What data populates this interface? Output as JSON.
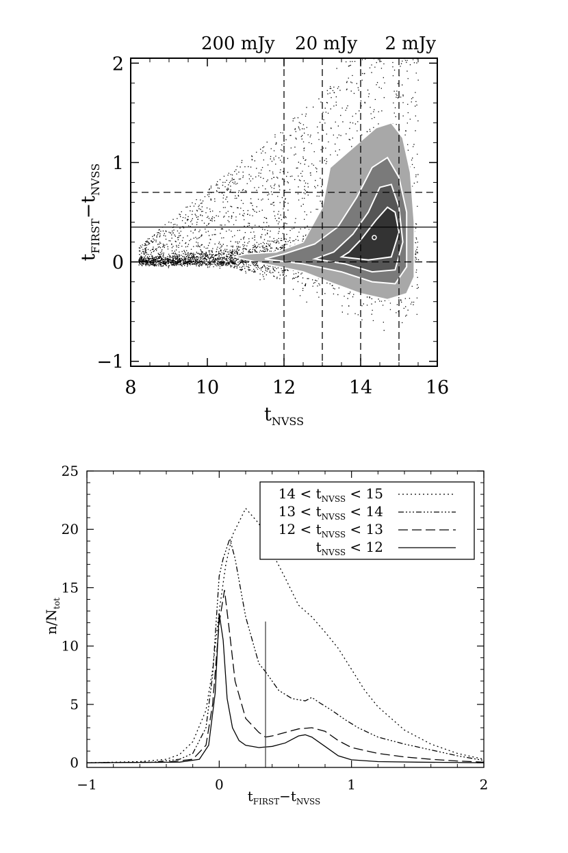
{
  "chart_data": [
    {
      "type": "scatter",
      "xlabel": "t",
      "xlabel_sub": "NVSS",
      "ylabel": "t",
      "ylabel_sub": "FIRST",
      "ylabel_mid": "−t",
      "ylabel_sub2": "NVSS",
      "xlim": [
        8,
        16
      ],
      "ylim": [
        -1.05,
        2.05
      ],
      "x_ticks": [
        "8",
        "10",
        "12",
        "14",
        "16"
      ],
      "y_ticks": [
        "−1",
        "0",
        "1",
        "2"
      ],
      "top_labels": [
        "200 mJy",
        "20 mJy",
        "2 mJy"
      ],
      "top_label_positions": [
        10.8,
        13.1,
        15.3
      ],
      "vertical_dashed_lines": [
        12,
        13,
        14,
        15
      ],
      "horizontal_dashed_lines": [
        0,
        0.7
      ],
      "horizontal_solid_line": 0.35,
      "grid": false,
      "contours": [
        {
          "level": 1,
          "color": "#a8a8a8",
          "points": [
            [
              10.7,
              0.05
            ],
            [
              11.5,
              -0.02
            ],
            [
              12.5,
              -0.1
            ],
            [
              13.3,
              -0.22
            ],
            [
              14.0,
              -0.32
            ],
            [
              14.7,
              -0.38
            ],
            [
              15.2,
              -0.32
            ],
            [
              15.4,
              -0.15
            ],
            [
              15.4,
              0.4
            ],
            [
              15.3,
              0.9
            ],
            [
              15.1,
              1.25
            ],
            [
              14.8,
              1.4
            ],
            [
              14.4,
              1.35
            ],
            [
              13.8,
              1.15
            ],
            [
              13.2,
              0.95
            ],
            [
              13.0,
              0.55
            ],
            [
              12.5,
              0.2
            ],
            [
              11.8,
              0.1
            ],
            [
              11.0,
              0.08
            ]
          ]
        },
        {
          "level": 2,
          "color": "#7a7a7a",
          "points": [
            [
              11.5,
              0.03
            ],
            [
              12.5,
              -0.02
            ],
            [
              13.5,
              -0.1
            ],
            [
              14.3,
              -0.2
            ],
            [
              14.9,
              -0.22
            ],
            [
              15.2,
              -0.05
            ],
            [
              15.2,
              0.5
            ],
            [
              15.0,
              0.85
            ],
            [
              14.7,
              1.05
            ],
            [
              14.3,
              0.95
            ],
            [
              13.9,
              0.65
            ],
            [
              13.4,
              0.35
            ],
            [
              12.8,
              0.18
            ],
            [
              12.0,
              0.08
            ]
          ]
        },
        {
          "level": 3,
          "color": "#555555",
          "points": [
            [
              12.8,
              0.03
            ],
            [
              13.6,
              -0.02
            ],
            [
              14.3,
              -0.1
            ],
            [
              14.9,
              -0.08
            ],
            [
              15.1,
              0.2
            ],
            [
              15.0,
              0.55
            ],
            [
              14.8,
              0.78
            ],
            [
              14.5,
              0.75
            ],
            [
              14.2,
              0.5
            ],
            [
              13.8,
              0.28
            ],
            [
              13.3,
              0.1
            ]
          ]
        },
        {
          "level": 4,
          "color": "#333333",
          "points": [
            [
              13.5,
              0.05
            ],
            [
              14.2,
              0.02
            ],
            [
              14.8,
              0.05
            ],
            [
              15.0,
              0.3
            ],
            [
              14.9,
              0.5
            ],
            [
              14.7,
              0.55
            ],
            [
              14.4,
              0.42
            ],
            [
              14.0,
              0.22
            ],
            [
              13.7,
              0.1
            ]
          ]
        }
      ]
    },
    {
      "type": "line",
      "xlabel": "t",
      "xlabel_sub": "FIRST",
      "xlabel_mid": "−t",
      "xlabel_sub2": "NVSS",
      "ylabel": "n/N",
      "ylabel_sub": "tot",
      "xlim": [
        -1,
        2
      ],
      "ylim": [
        -0.4,
        25
      ],
      "x_ticks": [
        "−1",
        "0",
        "1",
        "2"
      ],
      "x_tick_values": [
        -1,
        0,
        1,
        2
      ],
      "y_ticks": [
        "0",
        "5",
        "10",
        "15",
        "20",
        "25"
      ],
      "y_tick_values": [
        0,
        5,
        10,
        15,
        20,
        25
      ],
      "vertical_marker": {
        "x": 0.35,
        "y_top": 12.1
      },
      "legend_position": "top-right",
      "grid": false,
      "series": [
        {
          "name": "14 < t",
          "name_sub": "NVSS",
          "name_tail": " < 15",
          "dash": "2,4",
          "x": [
            -1.0,
            -0.6,
            -0.4,
            -0.3,
            -0.2,
            -0.1,
            -0.05,
            0.0,
            0.05,
            0.1,
            0.2,
            0.3,
            0.4,
            0.5,
            0.6,
            0.7,
            0.8,
            0.9,
            1.0,
            1.1,
            1.2,
            1.4,
            1.6,
            1.8,
            2.0
          ],
          "y": [
            0.0,
            0.1,
            0.3,
            0.7,
            1.8,
            4.5,
            8.0,
            13.0,
            17.0,
            19.5,
            21.8,
            20.5,
            18.0,
            15.8,
            13.5,
            12.5,
            11.2,
            9.8,
            8.0,
            6.2,
            4.8,
            2.8,
            1.6,
            0.8,
            0.3
          ]
        },
        {
          "name": "13 < t",
          "name_sub": "NVSS",
          "name_tail": " < 14",
          "dash": "8,3,2,3,2,3,2,3",
          "x": [
            -1.0,
            -0.5,
            -0.3,
            -0.2,
            -0.1,
            -0.05,
            0.0,
            0.03,
            0.08,
            0.12,
            0.2,
            0.3,
            0.35,
            0.45,
            0.55,
            0.65,
            0.7,
            0.75,
            0.85,
            0.95,
            1.05,
            1.2,
            1.4,
            1.6,
            1.8,
            2.0
          ],
          "y": [
            0.0,
            0.05,
            0.3,
            0.8,
            3.0,
            7.5,
            16.0,
            17.5,
            19.2,
            17.5,
            12.5,
            8.5,
            7.8,
            6.2,
            5.5,
            5.3,
            5.6,
            5.2,
            4.5,
            3.7,
            3.0,
            2.2,
            1.6,
            1.1,
            0.6,
            0.2
          ]
        },
        {
          "name": "12 < t",
          "name_sub": "NVSS",
          "name_tail": " < 13",
          "dash": "14,6",
          "x": [
            -1.0,
            -0.4,
            -0.2,
            -0.1,
            -0.05,
            0.0,
            0.04,
            0.08,
            0.12,
            0.2,
            0.3,
            0.35,
            0.4,
            0.5,
            0.6,
            0.7,
            0.8,
            0.9,
            1.0,
            1.2,
            1.4,
            1.6,
            1.8,
            2.0
          ],
          "y": [
            0.0,
            0.05,
            0.3,
            1.5,
            5.0,
            12.0,
            14.8,
            11.0,
            7.0,
            3.8,
            2.6,
            2.2,
            2.3,
            2.6,
            2.9,
            3.0,
            2.7,
            1.9,
            1.3,
            0.8,
            0.5,
            0.3,
            0.15,
            0.05
          ]
        },
        {
          "name": "t",
          "name_sub": "NVSS",
          "name_tail": " < 12",
          "dash": "",
          "x": [
            -1.0,
            -0.3,
            -0.15,
            -0.08,
            -0.03,
            0.0,
            0.03,
            0.06,
            0.1,
            0.15,
            0.2,
            0.3,
            0.4,
            0.5,
            0.6,
            0.65,
            0.7,
            0.8,
            0.9,
            1.0,
            1.2,
            1.5,
            2.0
          ],
          "y": [
            0.0,
            0.05,
            0.3,
            1.5,
            6.0,
            12.8,
            10.5,
            5.5,
            3.0,
            1.9,
            1.5,
            1.3,
            1.4,
            1.7,
            2.3,
            2.4,
            2.2,
            1.4,
            0.6,
            0.25,
            0.1,
            0.05,
            0.0
          ]
        }
      ]
    }
  ]
}
